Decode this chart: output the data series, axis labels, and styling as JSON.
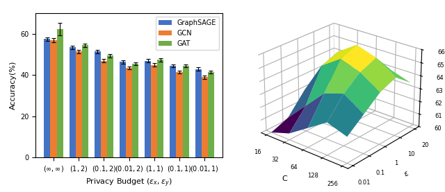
{
  "bar_categories": [
    "$(\\infty,\\infty)$",
    "$(1,2)$",
    "$(0.1,2)$",
    "$(0.01,2)$",
    "$(1,1)$",
    "$(0.1,1)$",
    "$(0.01,1)$"
  ],
  "graphsage_means": [
    57.5,
    53.5,
    51.5,
    46.5,
    47.0,
    44.5,
    43.0
  ],
  "gcn_means": [
    57.0,
    51.5,
    47.0,
    43.5,
    45.0,
    41.5,
    39.0
  ],
  "gat_means": [
    62.5,
    54.5,
    49.5,
    45.5,
    47.5,
    44.5,
    41.5
  ],
  "graphsage_errs": [
    1.0,
    0.8,
    0.8,
    0.8,
    0.8,
    0.8,
    0.8
  ],
  "gcn_errs": [
    1.0,
    0.8,
    0.8,
    0.8,
    0.8,
    0.8,
    0.8
  ],
  "gat_errs": [
    3.0,
    0.8,
    0.8,
    0.8,
    0.8,
    0.8,
    0.8
  ],
  "bar_colors": [
    "#4472c4",
    "#ed7d31",
    "#70ad47"
  ],
  "legend_labels": [
    "GraphSAGE",
    "GCN",
    "GAT"
  ],
  "ylabel": "Accuracy(%)",
  "xlabel": "Privacy Budget $(\\epsilon_x, \\epsilon_y)$",
  "ylim": [
    0,
    70
  ],
  "yticks": [
    0,
    20,
    40,
    60
  ],
  "surf_C_vals": [
    16,
    32,
    64,
    128,
    256
  ],
  "surf_eps_vals": [
    0.01,
    0.1,
    1,
    10,
    20
  ],
  "surf_Z": [
    [
      60.0,
      60.5,
      62.0,
      62.5,
      61.5
    ],
    [
      60.5,
      62.0,
      64.5,
      65.0,
      63.5
    ],
    [
      61.5,
      63.5,
      65.5,
      66.0,
      64.5
    ],
    [
      62.5,
      64.0,
      65.0,
      65.5,
      64.0
    ],
    [
      62.0,
      63.0,
      64.0,
      64.5,
      63.5
    ]
  ],
  "surf_zlim": [
    60,
    66
  ],
  "surf_zticks": [
    60,
    61,
    62,
    63,
    64,
    65,
    66
  ],
  "surf_xlabel": "C",
  "surf_eps_label": "$\\epsilon$",
  "surf_C_labels": [
    "16",
    "32",
    "64",
    "128",
    "256"
  ],
  "surf_eps_labels": [
    "0.01",
    "0.1",
    "1",
    "10",
    "20"
  ]
}
